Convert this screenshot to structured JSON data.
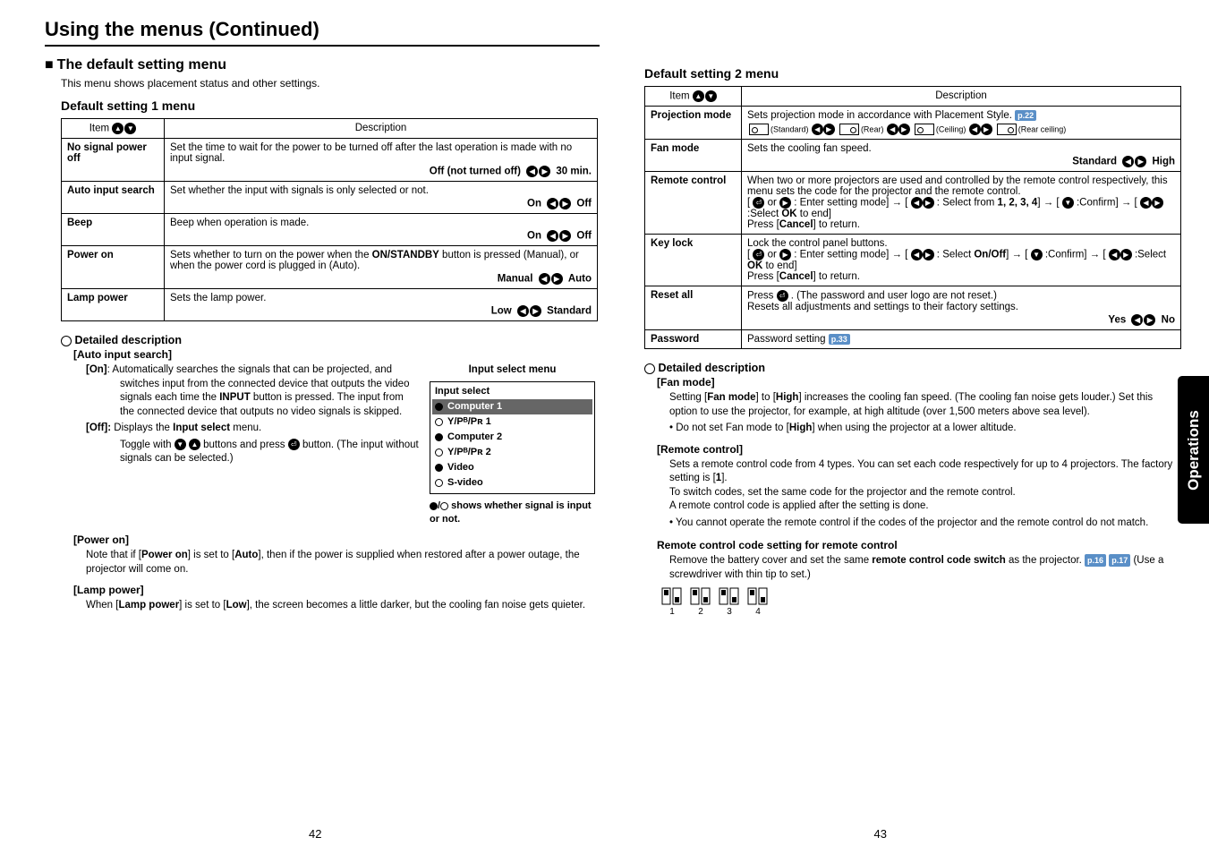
{
  "page_title": "Using the menus (Continued)",
  "side_tab": "Operations",
  "page_left": "42",
  "page_right": "43",
  "left": {
    "menu_heading": "The default setting menu",
    "menu_sub": "This menu shows placement status and other settings.",
    "section1": "Default setting 1 menu",
    "th_item": "Item",
    "th_desc": "Description",
    "rows": [
      {
        "item": "No signal power off",
        "desc": "Set the time to wait for the power to be turned off after the last operation is made with no input signal.",
        "opt_left": "Off (not turned off)",
        "opt_right": "30 min."
      },
      {
        "item": "Auto input search",
        "desc": "Set whether the input with signals is only selected or not.",
        "opt_left": "On",
        "opt_right": "Off"
      },
      {
        "item": "Beep",
        "desc": "Beep when operation is made.",
        "opt_left": "On",
        "opt_right": "Off"
      },
      {
        "item": "Power on",
        "desc": "Sets whether to turn on the power when the ON/STANDBY button is pressed (Manual), or when the power cord is plugged in (Auto).",
        "opt_left": "Manual",
        "opt_right": "Auto",
        "bold_in_desc": "ON/STANDBY"
      },
      {
        "item": "Lamp power",
        "desc": "Sets the lamp power.",
        "opt_left": "Low",
        "opt_right": "Standard"
      }
    ],
    "detailed_title": "Detailed description",
    "d1_sub": "[Auto input search]",
    "d1_on": "[On]:  Automatically searches the signals that can be projected, and switches input from the connected device that outputs the video signals each time the INPUT button is pressed. The input from the connected device that outputs no video signals is skipped.",
    "d1_on_bold": "INPUT",
    "d1_off_label": "[Off]:",
    "d1_off_desc": "Displays the Input select menu.",
    "d1_off_body": "Toggle with  buttons and press  button. (The input without signals can be selected.)",
    "input_select_title": "Input select menu",
    "input_select_header": "Input select",
    "input_select_items": [
      {
        "label": "Computer 1",
        "fill": true,
        "sel": true
      },
      {
        "label": "Y/Pᴮ/Pʀ 1",
        "fill": false
      },
      {
        "label": "Computer 2",
        "fill": true
      },
      {
        "label": "Y/Pᴮ/Pʀ 2",
        "fill": false
      },
      {
        "label": "Video",
        "fill": true
      },
      {
        "label": "S-video",
        "fill": false
      }
    ],
    "input_select_note": " shows whether signal is input or not.",
    "d2_sub": "[Power on]",
    "d2_body": "Note that if [Power on] is set to [Auto], then if the power is supplied when restored after a power outage, the projector will come on.",
    "d3_sub": "[Lamp power]",
    "d3_body": "When [Lamp power] is set to [Low], the screen becomes a little darker, but the cooling fan noise gets quieter."
  },
  "right": {
    "section2": "Default setting 2 menu",
    "th_item": "Item",
    "th_desc": "Description",
    "rows": [
      {
        "item": "Projection mode",
        "desc": "Sets projection mode in accordance with Placement Style.",
        "pref": "p.22",
        "has_proj": true,
        "proj": [
          {
            "label": "(Standard)"
          },
          {
            "label": "(Rear)"
          },
          {
            "label": "(Ceiling)"
          },
          {
            "label": "(Rear ceiling)"
          }
        ]
      },
      {
        "item": "Fan mode",
        "desc": "Sets the cooling fan speed.",
        "opt_left": "Standard",
        "opt_right": "High"
      },
      {
        "item": "Remote control",
        "desc_lines": [
          "When two or more projectors are used and controlled by the remote control respectively, this menu sets the code for the projector and the remote control.",
          "[  or  : Enter setting mode] → [  : Select from 1, 2, 3, 4] → [ :Confirm] → [  :Select OK to end]",
          "Press [Cancel] to return."
        ],
        "bold_last": "Cancel",
        "bold_ok": "OK",
        "bold_nums": "1, 2, 3, 4"
      },
      {
        "item": "Key lock",
        "desc_lines": [
          "Lock the control panel buttons.",
          "[  or  : Enter setting mode] → [  : Select On/Off] → [ :Confirm] → [  :Select OK to end]",
          "Press [Cancel] to return."
        ],
        "bold_last": "Cancel",
        "bold_ok": "OK",
        "bold_onoff": "On/Off"
      },
      {
        "item": "Reset all",
        "desc": "Press  . (The password and user logo are not reset.)\nResets all adjustments and settings to their factory settings.",
        "opt_left": "Yes",
        "opt_right": "No"
      },
      {
        "item": "Password",
        "desc": "Password setting",
        "pref": "p.33"
      }
    ],
    "detailed_title": "Detailed description",
    "d1_sub": "[Fan mode]",
    "d1_body": "Setting [Fan mode] to [High] increases the cooling fan speed. (The cooling fan noise gets louder.) Set this option to use the projector, for example, at high altitude (over 1,500 meters above sea level).",
    "d1_bullet": "Do not set Fan mode to [High] when using the projector at a lower altitude.",
    "d2_sub": "[Remote control]",
    "d2_body1": "Sets a remote control code from 4 types. You can set each code respectively for up to 4 projectors. The factory setting is [1].",
    "d2_body2": "To switch codes, set the same code for the projector and the remote control.",
    "d2_body3": "A remote control code is applied after the setting is done.",
    "d2_bullet": "You cannot operate the remote control if the codes of the projector and the remote control do not match.",
    "d3_sub": "Remote control code setting for remote control",
    "d3_body": "Remove the battery cover and set the same remote control code switch as the projector.",
    "d3_bold": "remote control code switch",
    "d3_prefs": [
      "p.16",
      "p.17"
    ],
    "d3_tail": "(Use a screwdriver with thin tip to set.)",
    "switches": [
      "1",
      "2",
      "3",
      "4"
    ]
  }
}
